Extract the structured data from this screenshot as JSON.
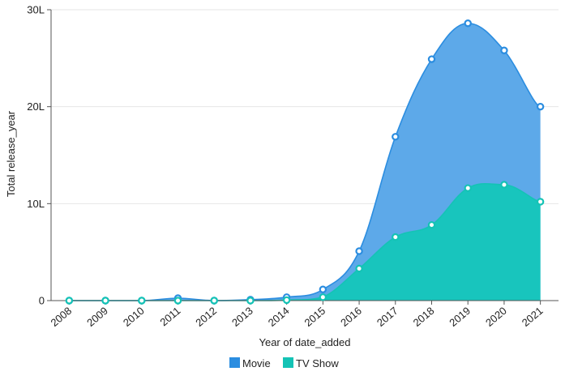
{
  "chart_data": {
    "type": "area",
    "stacked": false,
    "xlabel": "Year of date_added",
    "ylabel": "Total release_year",
    "ylim": [
      0,
      30
    ],
    "y_ticks": [
      0,
      10,
      20,
      30
    ],
    "y_tick_labels": [
      "0",
      "10L",
      "20L",
      "30L"
    ],
    "grid": true,
    "legend_position": "bottom-center",
    "categories": [
      "2008",
      "2009",
      "2010",
      "2011",
      "2012",
      "2013",
      "2014",
      "2015",
      "2016",
      "2017",
      "2018",
      "2019",
      "2020",
      "2021"
    ],
    "series": [
      {
        "name": "Movie",
        "color": "#2b8de0",
        "fill": "#5da9e9",
        "values": [
          0.0,
          0.0,
          0.0,
          0.25,
          0.0,
          0.1,
          0.35,
          1.15,
          5.1,
          16.9,
          24.9,
          28.6,
          25.8,
          20.0
        ]
      },
      {
        "name": "TV Show",
        "color": "#14c3b5",
        "fill": "#18c5bd",
        "values": [
          0.0,
          0.0,
          0.0,
          0.0,
          0.0,
          0.0,
          0.05,
          0.35,
          3.3,
          6.55,
          7.8,
          11.6,
          11.95,
          10.2
        ]
      }
    ]
  }
}
